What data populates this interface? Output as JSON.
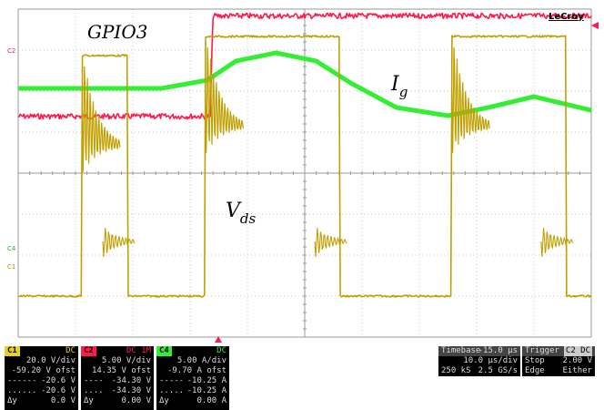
{
  "chart_data": {
    "type": "line",
    "title": "",
    "xlabel": "",
    "ylabel": "",
    "grid": true,
    "x_divisions": 10,
    "y_divisions": 8,
    "time_per_div_us": 10,
    "series": [
      {
        "name": "GPIO3",
        "color": "#ff1a4b",
        "x": [
          0,
          3.35,
          3.4,
          10
        ],
        "y": [
          0.62,
          0.62,
          0.97,
          0.97
        ]
      },
      {
        "name": "I_g",
        "color": "#33ee33",
        "x": [
          0,
          0.5,
          1.5,
          2.5,
          3.3,
          3.8,
          4.5,
          5.2,
          5.8,
          6.6,
          7.5,
          8.2,
          9.0,
          9.6,
          10
        ],
        "y": [
          0.0,
          0.0,
          0.0,
          0.0,
          0.03,
          0.1,
          0.13,
          0.1,
          0.02,
          -0.07,
          -0.1,
          -0.07,
          -0.03,
          -0.06,
          -0.08
        ]
      },
      {
        "name": "V_ds",
        "color": "#c0a000",
        "x": [
          0,
          1.1,
          1.12,
          1.9,
          1.92,
          3.25,
          3.27,
          5.6,
          5.62,
          7.55,
          7.57,
          9.55,
          9.57,
          10
        ],
        "y": [
          0.0,
          0.0,
          0.88,
          0.88,
          0.0,
          0.0,
          0.95,
          0.95,
          0.0,
          0.0,
          0.95,
          0.95,
          0.0,
          0.0
        ]
      }
    ]
  },
  "labels": {
    "gpio3": "GPIO3",
    "ig_main": "I",
    "ig_sub": "g",
    "vds_main": "V",
    "vds_sub": "ds",
    "brand": "LeCroy",
    "marker_c2": "C2",
    "marker_c4": "C4",
    "marker_c1": "C1"
  },
  "channels": [
    {
      "id": "C1",
      "coupling": "DC",
      "chip_color": "#e8d21a",
      "scale": "20.0 V/div",
      "offset": "-59.20 V ofst",
      "r1": "-20.6 V",
      "r2": "-20.6 V",
      "delta_label": "Δy",
      "delta": "0.0 V"
    },
    {
      "id": "C2",
      "coupling": "DC 1M",
      "chip_color": "#ff1a4b",
      "scale": "5.00 V/div",
      "offset": "14.35 V ofst",
      "r1": "-34.30 V",
      "r2": "-34.30 V",
      "delta_label": "Δy",
      "delta": "0.00 V"
    },
    {
      "id": "C4",
      "coupling": "DC",
      "chip_color": "#33ee33",
      "scale": "5.00 A/div",
      "offset": "-9.70 A ofst",
      "r1": "-10.25 A",
      "r2": "-10.25 A",
      "delta_label": "Δy",
      "delta": "0.00 A"
    }
  ],
  "timebase": {
    "label": "Timebase",
    "delay": "-15.0 µs",
    "per_div": "10.0 µs/div",
    "samples": "250 kS",
    "rate": "2.5 GS/s"
  },
  "trigger": {
    "label": "Trigger",
    "badge": "C2 DC",
    "mode": "Stop",
    "level": "2.00 V",
    "type": "Edge",
    "slope": "Either"
  }
}
